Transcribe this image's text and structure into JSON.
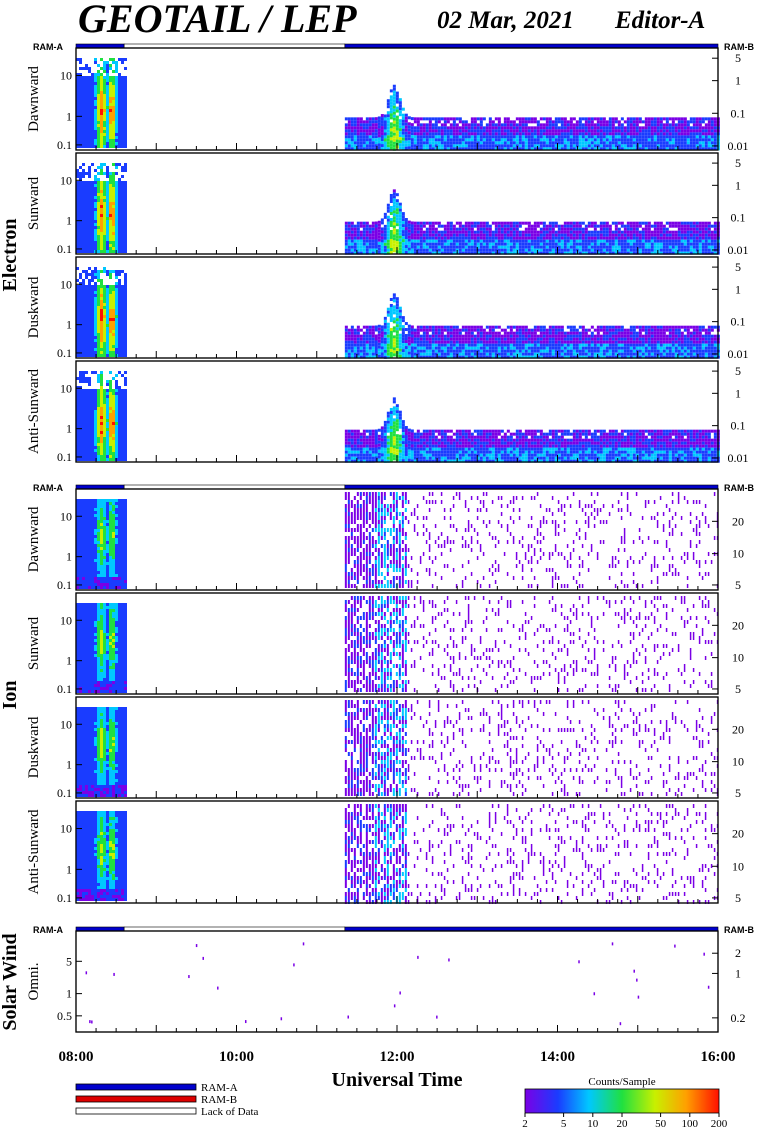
{
  "header": {
    "title": "GEOTAIL / LEP",
    "date": "02 Mar, 2021",
    "editor": "Editor-A"
  },
  "colors": {
    "ram_a": "#0000cc",
    "ram_b": "#dd0000",
    "lack_of_data": "#ffffff",
    "scale": [
      "#7a00e6",
      "#1a3cff",
      "#00c8ff",
      "#20e040",
      "#c8f000",
      "#ffa000",
      "#ff1000"
    ]
  },
  "chart_data": {
    "type": "heatmap",
    "xlabel": "Universal Time",
    "x_ticks": [
      "08:00",
      "10:00",
      "12:00",
      "14:00",
      "16:00"
    ],
    "x_range_hours": [
      8,
      16
    ],
    "ram_labels": {
      "left": "RAM-A",
      "right": "RAM-B"
    },
    "ram_bars": [
      {
        "from": 8.0,
        "to": 8.6,
        "mode": "RAM-A"
      },
      {
        "from": 8.6,
        "to": 11.35,
        "mode": "Lack of Data"
      },
      {
        "from": 11.35,
        "to": 16.0,
        "mode": "RAM-A"
      }
    ],
    "groups": [
      {
        "label": "Electron",
        "left_ticks": [
          "10",
          "1",
          "0.1"
        ],
        "right_ticks": [
          "5",
          "1",
          "0.1",
          "0.01"
        ],
        "panels": [
          {
            "label": "Dawnward"
          },
          {
            "label": "Sunward"
          },
          {
            "label": "Duskward"
          },
          {
            "label": "Anti-Sunward"
          }
        ]
      },
      {
        "label": "Ion",
        "left_ticks": [
          "10",
          "1",
          "0.1"
        ],
        "right_ticks": [
          "20",
          "10",
          "5"
        ],
        "panels": [
          {
            "label": "Dawnward"
          },
          {
            "label": "Sunward"
          },
          {
            "label": "Duskward"
          },
          {
            "label": "Anti-Sunward"
          }
        ]
      },
      {
        "label": "Solar Wind",
        "left_ticks": [
          "5",
          "1",
          "0.5"
        ],
        "right_ticks": [
          "2",
          "1",
          "0.2"
        ],
        "panels": [
          {
            "label": "Omni."
          }
        ]
      }
    ],
    "legend": [
      {
        "label": "RAM-A"
      },
      {
        "label": "RAM-B"
      },
      {
        "label": "Lack of Data"
      }
    ],
    "colorbar": {
      "title": "Counts/Sample",
      "ticks": [
        "2",
        "5",
        "10",
        "20",
        "50",
        "100",
        "200"
      ],
      "values": [
        2,
        5,
        10,
        20,
        50,
        100,
        200
      ]
    },
    "active_periods_hours": [
      [
        8.0,
        8.6
      ],
      [
        11.35,
        16.0
      ]
    ],
    "peak_times_hours": [
      8.3,
      8.43,
      11.95
    ]
  }
}
